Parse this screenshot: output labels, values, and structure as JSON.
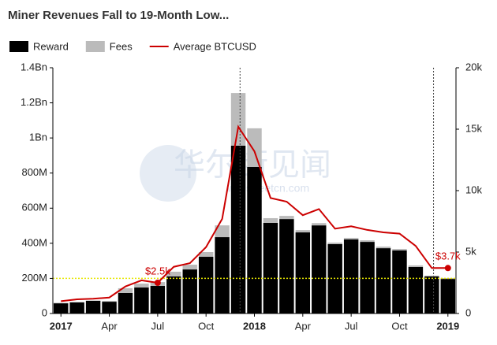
{
  "chart_data": {
    "type": "bar",
    "stacked": true,
    "title": "Miner Revenues Fall to 19-Month Low...",
    "watermark": "华尔街见闻",
    "watermark_sub": "wallstreetcn.com",
    "categories": [
      "2017",
      null,
      null,
      "Apr",
      null,
      null,
      "Jul",
      null,
      null,
      "Oct",
      null,
      null,
      "2018",
      null,
      null,
      "Apr",
      null,
      null,
      "Jul",
      null,
      null,
      "Oct",
      null,
      null,
      "2019"
    ],
    "series": [
      {
        "name": "Reward",
        "color": "#000000",
        "values": [
          58000000,
          63000000,
          72000000,
          67000000,
          117000000,
          148000000,
          157000000,
          211000000,
          251000000,
          323000000,
          435000000,
          956000000,
          835000000,
          516000000,
          538000000,
          462000000,
          502000000,
          395000000,
          422000000,
          408000000,
          372000000,
          359000000,
          265000000,
          211000000,
          197000000
        ]
      },
      {
        "name": "Fees",
        "color": "#bbbbbb",
        "values": [
          3000000,
          3000000,
          3000000,
          5000000,
          27000000,
          22000000,
          22000000,
          27000000,
          27000000,
          27000000,
          67000000,
          300000000,
          220000000,
          27000000,
          18000000,
          13000000,
          13000000,
          9000000,
          9000000,
          9000000,
          9000000,
          9000000,
          9000000,
          5000000,
          5000000
        ]
      },
      {
        "name": "Average BTCUSD",
        "color": "#cc0000",
        "type": "line",
        "axis": "y2",
        "values": [
          1000,
          1150,
          1200,
          1300,
          2200,
          2700,
          2500,
          3800,
          4100,
          5400,
          7700,
          15200,
          13200,
          9400,
          9100,
          8000,
          8500,
          6900,
          7100,
          6800,
          6600,
          6500,
          5500,
          3700,
          3700
        ],
        "value_labels": [
          null,
          null,
          null,
          null,
          null,
          null,
          "$2.5k",
          null,
          null,
          null,
          null,
          null,
          null,
          null,
          null,
          null,
          null,
          null,
          null,
          null,
          null,
          null,
          null,
          null,
          "$3.7k"
        ]
      }
    ],
    "ylim": [
      0,
      1400000000
    ],
    "yticks": [
      0,
      {
        "value": 200000000,
        "label": "200M"
      },
      {
        "value": 400000000,
        "label": "400M"
      },
      {
        "value": 600000000,
        "label": "600M"
      },
      {
        "value": 800000000,
        "label": "800M"
      },
      {
        "value": 1000000000,
        "label": "1Bn"
      },
      {
        "value": 1200000000,
        "label": "1.2Bn"
      },
      {
        "value": 1400000000,
        "label": "1.4Bn"
      }
    ],
    "y2lim": [
      0,
      20000
    ],
    "y2ticks": [
      0,
      {
        "value": 5000,
        "label": "5k"
      },
      {
        "value": 10000,
        "label": "10k"
      },
      {
        "value": 15000,
        "label": "15k"
      },
      {
        "value": 20000,
        "label": "20k"
      }
    ],
    "reference_line": {
      "value": 200000000,
      "color": "#e6e600"
    },
    "legend": "top-left"
  }
}
